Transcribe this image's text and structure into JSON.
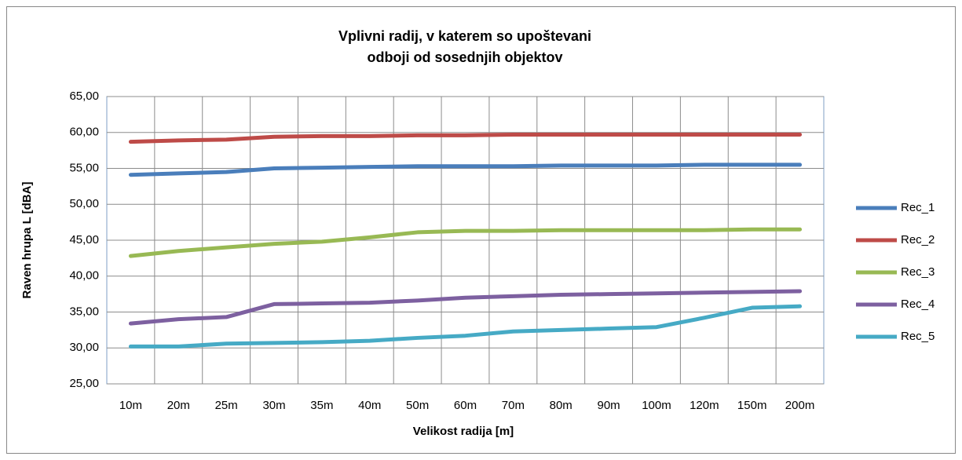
{
  "chart_data": {
    "type": "line",
    "title": [
      "Vplivni radij, v katerem so upoštevani",
      "odboji od sosednjih objektov"
    ],
    "x_label": "Velikost radija    [m]",
    "y_label": "Raven hrupa   L   [dBA]",
    "categories": [
      "10m",
      "20m",
      "25m",
      "30m",
      "35m",
      "40m",
      "50m",
      "60m",
      "70m",
      "80m",
      "90m",
      "100m",
      "120m",
      "150m",
      "200m"
    ],
    "series": [
      {
        "name": "Rec_1",
        "color": "#4a7ebb",
        "values": [
          54.1,
          54.3,
          54.5,
          55.0,
          55.1,
          55.2,
          55.3,
          55.3,
          55.3,
          55.4,
          55.4,
          55.4,
          55.5,
          55.5,
          55.5
        ]
      },
      {
        "name": "Rec_2",
        "color": "#be4b48",
        "values": [
          58.7,
          58.9,
          59.0,
          59.4,
          59.5,
          59.5,
          59.6,
          59.6,
          59.7,
          59.7,
          59.7,
          59.7,
          59.7,
          59.7,
          59.7
        ]
      },
      {
        "name": "Rec_3",
        "color": "#98b954",
        "values": [
          42.8,
          43.5,
          44.0,
          44.5,
          44.8,
          45.4,
          46.1,
          46.3,
          46.3,
          46.4,
          46.4,
          46.4,
          46.4,
          46.5,
          46.5
        ]
      },
      {
        "name": "Rec_4",
        "color": "#7d60a0",
        "values": [
          33.4,
          34.0,
          34.3,
          36.1,
          36.2,
          36.3,
          36.6,
          37.0,
          37.2,
          37.4,
          37.5,
          37.6,
          37.7,
          37.8,
          37.9
        ]
      },
      {
        "name": "Rec_5",
        "color": "#46aac5",
        "values": [
          30.2,
          30.2,
          30.6,
          30.7,
          30.8,
          31.0,
          31.4,
          31.7,
          32.3,
          32.5,
          32.7,
          32.9,
          34.2,
          35.6,
          35.8
        ]
      }
    ],
    "ylim": [
      25,
      65
    ],
    "yticks": [
      {
        "value": 25,
        "label": "25,00"
      },
      {
        "value": 30,
        "label": "30,00"
      },
      {
        "value": 35,
        "label": "35,00"
      },
      {
        "value": 40,
        "label": "40,00"
      },
      {
        "value": 45,
        "label": "45,00"
      },
      {
        "value": 50,
        "label": "50,00"
      },
      {
        "value": 55,
        "label": "55,00"
      },
      {
        "value": 60,
        "label": "60,00"
      },
      {
        "value": 65,
        "label": "65,00"
      }
    ],
    "grid": true,
    "legend": "right"
  }
}
